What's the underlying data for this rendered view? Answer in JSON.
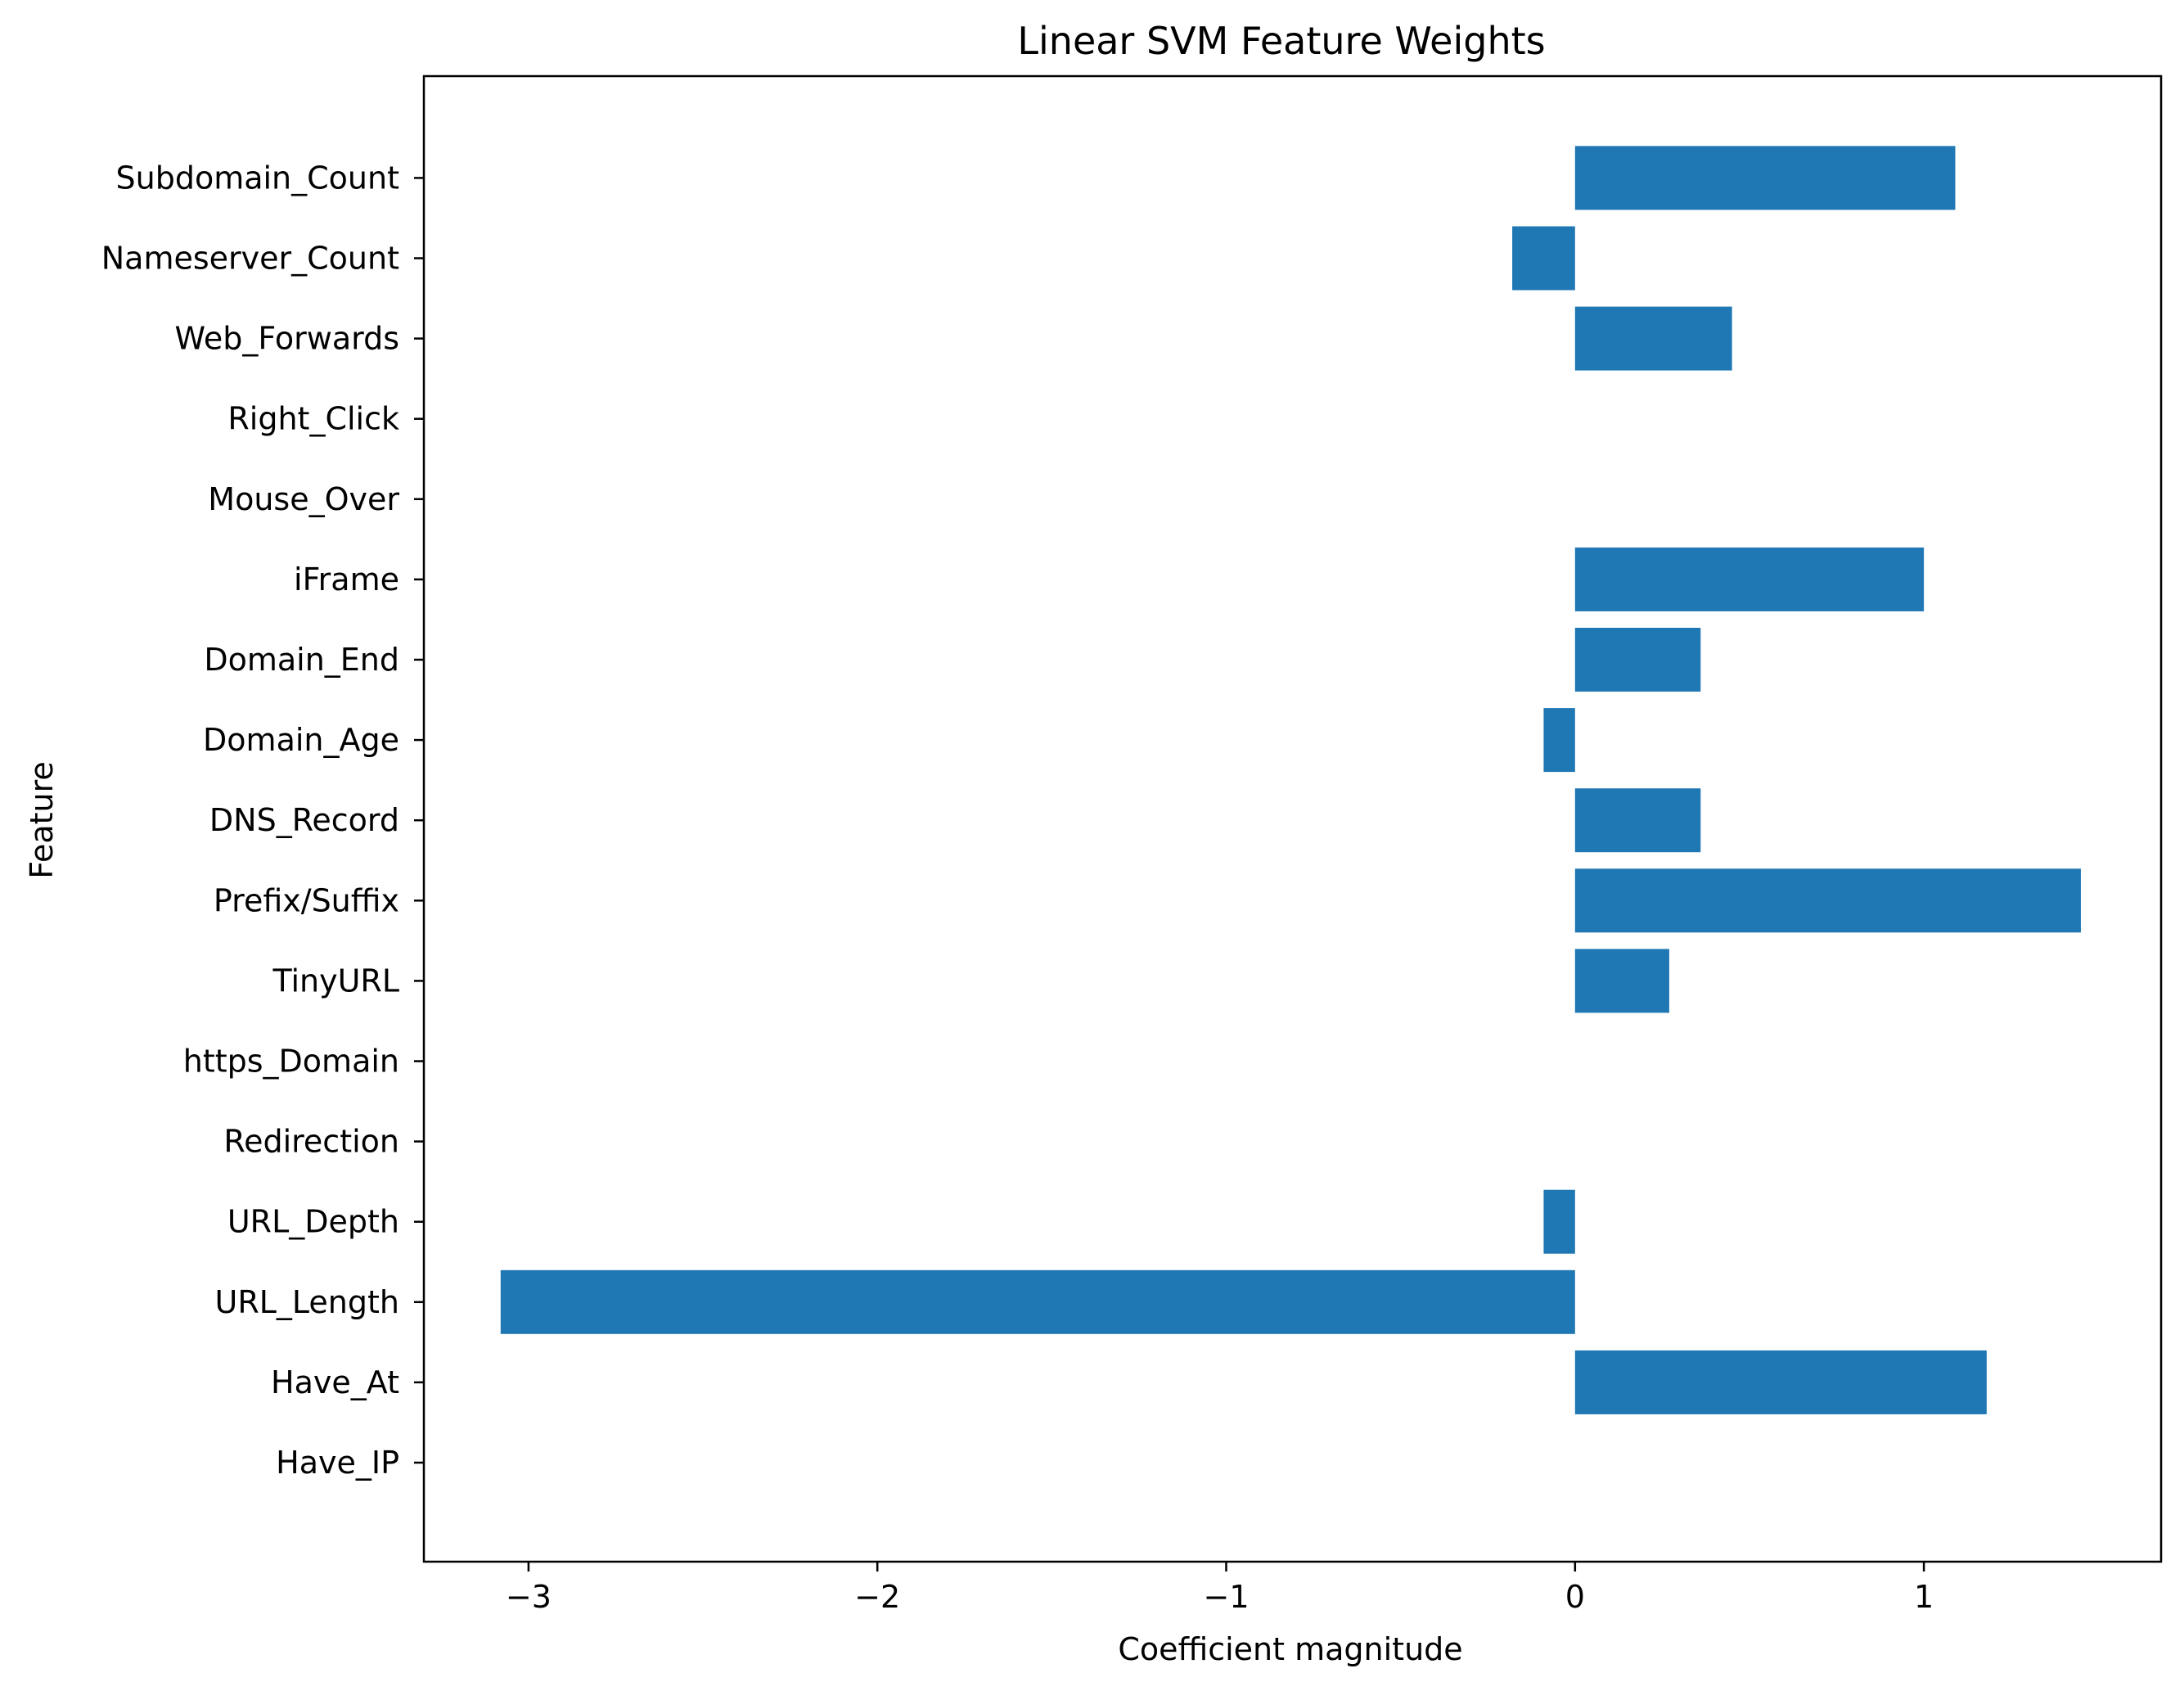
{
  "chart_data": {
    "type": "bar",
    "orientation": "horizontal",
    "title": "Linear SVM Feature Weights",
    "xlabel": "Coefficient magnitude",
    "ylabel": "Feature",
    "categories": [
      "Have_IP",
      "Have_At",
      "URL_Length",
      "URL_Depth",
      "Redirection",
      "https_Domain",
      "TinyURL",
      "Prefix/Suffix",
      "DNS_Record",
      "Domain_Age",
      "Domain_End",
      "iFrame",
      "Mouse_Over",
      "Right_Click",
      "Web_Forwards",
      "Nameserver_Count",
      "Subdomain_Count"
    ],
    "values": [
      0,
      1.18,
      -3.08,
      -0.09,
      0,
      0,
      0.27,
      1.45,
      0.36,
      -0.09,
      0.36,
      1.0,
      0,
      0,
      0.45,
      -0.18,
      1.09
    ],
    "xlim": [
      -3.3,
      1.68
    ],
    "xticks": [
      -3,
      -2,
      -1,
      0,
      1
    ],
    "xtick_labels": [
      "−3",
      "−2",
      "−1",
      "0",
      "1"
    ],
    "bar_color": "#1f77b4",
    "grid": false,
    "legend": "none"
  }
}
